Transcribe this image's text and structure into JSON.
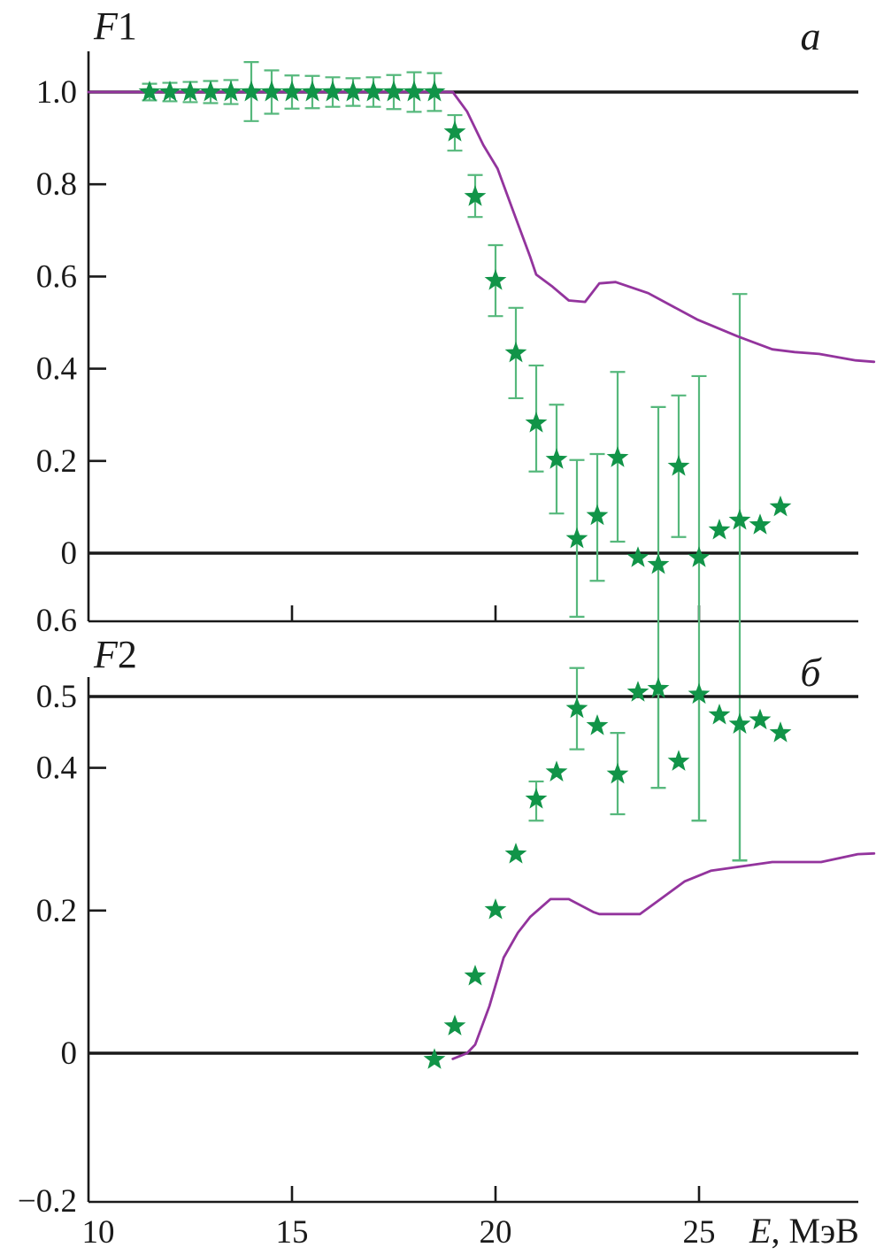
{
  "chart_data": {
    "type": "scatter",
    "x_axis": {
      "label_var": "E",
      "label_unit": ", МэВ",
      "tick_labels": [
        "10",
        "15",
        "20",
        "25"
      ],
      "tick_values": [
        10,
        15,
        20,
        25
      ],
      "range": [
        10,
        28.9
      ]
    },
    "legend": "none",
    "grid": false,
    "colors": {
      "star": "#119448",
      "error_bar": "#56b87c",
      "curve": "#93349d",
      "line": "#1a1a1a"
    },
    "panels": [
      {
        "name": "F1",
        "title_main": "F",
        "title_num": "1",
        "corner_letter": "a",
        "ylim": [
          -0.148,
          1.088
        ],
        "y_ticks": [
          {
            "v": 1.0,
            "label": "1.0"
          },
          {
            "v": 0.8,
            "label": "0.8"
          },
          {
            "v": 0.6,
            "label": "0.6"
          },
          {
            "v": 0.4,
            "label": "0.4"
          },
          {
            "v": 0.2,
            "label": "0.2"
          },
          {
            "v": 0.0,
            "label": "0"
          }
        ],
        "corner_axis_label": "0.6",
        "hlines": [
          1.0,
          0.0
        ],
        "stars": [
          {
            "e": 11.5,
            "v": 1.0,
            "lo": 0.982,
            "hi": 1.018
          },
          {
            "e": 12.0,
            "v": 1.0,
            "lo": 0.98,
            "hi": 1.02
          },
          {
            "e": 12.5,
            "v": 1.0,
            "lo": 0.978,
            "hi": 1.022
          },
          {
            "e": 13.0,
            "v": 1.0,
            "lo": 0.976,
            "hi": 1.024
          },
          {
            "e": 13.5,
            "v": 1.0,
            "lo": 0.974,
            "hi": 1.026
          },
          {
            "e": 14.0,
            "v": 1.0,
            "lo": 0.937,
            "hi": 1.065
          },
          {
            "e": 14.5,
            "v": 1.0,
            "lo": 0.953,
            "hi": 1.047
          },
          {
            "e": 15.0,
            "v": 1.0,
            "lo": 0.964,
            "hi": 1.036
          },
          {
            "e": 15.5,
            "v": 1.0,
            "lo": 0.965,
            "hi": 1.035
          },
          {
            "e": 16.0,
            "v": 1.0,
            "lo": 0.968,
            "hi": 1.032
          },
          {
            "e": 16.5,
            "v": 1.0,
            "lo": 0.97,
            "hi": 1.03
          },
          {
            "e": 17.0,
            "v": 1.0,
            "lo": 0.968,
            "hi": 1.032
          },
          {
            "e": 17.5,
            "v": 1.0,
            "lo": 0.963,
            "hi": 1.037
          },
          {
            "e": 18.0,
            "v": 1.0,
            "lo": 0.957,
            "hi": 1.043
          },
          {
            "e": 18.5,
            "v": 1.0,
            "lo": 0.959,
            "hi": 1.041
          },
          {
            "e": 19.0,
            "v": 0.913,
            "lo": 0.873,
            "hi": 0.95
          },
          {
            "e": 19.5,
            "v": 0.773,
            "lo": 0.729,
            "hi": 0.82
          },
          {
            "e": 20.0,
            "v": 0.591,
            "lo": 0.514,
            "hi": 0.668
          },
          {
            "e": 20.5,
            "v": 0.434,
            "lo": 0.336,
            "hi": 0.532
          },
          {
            "e": 21.0,
            "v": 0.282,
            "lo": 0.177,
            "hi": 0.407
          },
          {
            "e": 21.5,
            "v": 0.203,
            "lo": 0.086,
            "hi": 0.322
          },
          {
            "e": 22.0,
            "v": 0.031,
            "lo": -0.138,
            "hi": 0.202
          },
          {
            "e": 22.5,
            "v": 0.081,
            "lo": -0.06,
            "hi": 0.215
          },
          {
            "e": 23.0,
            "v": 0.207,
            "lo": 0.025,
            "hi": 0.393
          },
          {
            "e": 23.5,
            "v": -0.01,
            "lo": null,
            "hi": null
          },
          {
            "e": 24.0,
            "v": -0.025,
            "lo": -0.509,
            "hi": 0.317
          },
          {
            "e": 24.5,
            "v": 0.188,
            "lo": 0.035,
            "hi": 0.342
          },
          {
            "e": 25.0,
            "v": -0.01,
            "lo": -0.58,
            "hi": 0.384
          },
          {
            "e": 25.5,
            "v": 0.05,
            "lo": null,
            "hi": null
          },
          {
            "e": 26.0,
            "v": 0.071,
            "lo": -0.666,
            "hi": 0.562
          },
          {
            "e": 26.5,
            "v": 0.061,
            "lo": null,
            "hi": null
          },
          {
            "e": 27.0,
            "v": 0.1,
            "lo": null,
            "hi": null
          }
        ],
        "curve": [
          [
            10.0,
            1.0
          ],
          [
            18.95,
            1.0
          ],
          [
            19.3,
            0.958
          ],
          [
            19.7,
            0.885
          ],
          [
            20.05,
            0.834
          ],
          [
            20.45,
            0.738
          ],
          [
            20.85,
            0.643
          ],
          [
            21.0,
            0.604
          ],
          [
            21.4,
            0.578
          ],
          [
            21.8,
            0.548
          ],
          [
            22.2,
            0.545
          ],
          [
            22.55,
            0.585
          ],
          [
            22.95,
            0.588
          ],
          [
            23.75,
            0.564
          ],
          [
            24.95,
            0.507
          ],
          [
            25.95,
            0.47
          ],
          [
            26.8,
            0.442
          ],
          [
            27.35,
            0.436
          ],
          [
            27.95,
            0.432
          ],
          [
            28.85,
            0.418
          ],
          [
            29.3,
            0.415
          ]
        ]
      },
      {
        "name": "F2",
        "title_main": "F",
        "title_num": "2",
        "corner_letter": "б",
        "ylim": [
          -0.208,
          0.527
        ],
        "y_ticks": [
          {
            "v": 0.5,
            "label": "0.5"
          },
          {
            "v": 0.4,
            "label": "0.4"
          },
          {
            "v": 0.2,
            "label": "0.2"
          },
          {
            "v": 0.0,
            "label": "0"
          }
        ],
        "corner_axis_label": "−0.2",
        "hlines": [
          0.5,
          0.0
        ],
        "stars": [
          {
            "e": 18.5,
            "v": -0.009,
            "lo": null,
            "hi": null
          },
          {
            "e": 19.0,
            "v": 0.038,
            "lo": null,
            "hi": null
          },
          {
            "e": 19.5,
            "v": 0.108,
            "lo": null,
            "hi": null
          },
          {
            "e": 20.0,
            "v": 0.201,
            "lo": null,
            "hi": null
          },
          {
            "e": 20.5,
            "v": 0.279,
            "lo": null,
            "hi": null
          },
          {
            "e": 21.0,
            "v": 0.356,
            "lo": 0.326,
            "hi": 0.381
          },
          {
            "e": 21.5,
            "v": 0.394,
            "lo": null,
            "hi": null
          },
          {
            "e": 22.0,
            "v": 0.483,
            "lo": 0.426,
            "hi": 0.54
          },
          {
            "e": 22.5,
            "v": 0.459,
            "lo": null,
            "hi": null
          },
          {
            "e": 23.0,
            "v": 0.391,
            "lo": 0.335,
            "hi": 0.449
          },
          {
            "e": 23.5,
            "v": 0.506,
            "lo": null,
            "hi": null
          },
          {
            "e": 24.0,
            "v": 0.511,
            "lo": 0.372,
            "hi": null
          },
          {
            "e": 24.5,
            "v": 0.409,
            "lo": null,
            "hi": null
          },
          {
            "e": 25.0,
            "v": 0.503,
            "lo": 0.326,
            "hi": null
          },
          {
            "e": 25.5,
            "v": 0.474,
            "lo": null,
            "hi": null
          },
          {
            "e": 26.0,
            "v": 0.461,
            "lo": 0.27,
            "hi": null
          },
          {
            "e": 26.5,
            "v": 0.467,
            "lo": null,
            "hi": null
          },
          {
            "e": 27.0,
            "v": 0.449,
            "lo": null,
            "hi": null
          }
        ],
        "curve": [
          [
            18.95,
            -0.008
          ],
          [
            19.3,
            0.0
          ],
          [
            19.5,
            0.012
          ],
          [
            19.85,
            0.066
          ],
          [
            20.2,
            0.134
          ],
          [
            20.55,
            0.169
          ],
          [
            20.85,
            0.191
          ],
          [
            21.35,
            0.216
          ],
          [
            21.8,
            0.216
          ],
          [
            22.4,
            0.198
          ],
          [
            22.55,
            0.195
          ],
          [
            23.55,
            0.195
          ],
          [
            24.65,
            0.241
          ],
          [
            25.3,
            0.256
          ],
          [
            26.8,
            0.268
          ],
          [
            28.0,
            0.268
          ],
          [
            28.9,
            0.279
          ],
          [
            29.3,
            0.28
          ]
        ]
      }
    ]
  }
}
